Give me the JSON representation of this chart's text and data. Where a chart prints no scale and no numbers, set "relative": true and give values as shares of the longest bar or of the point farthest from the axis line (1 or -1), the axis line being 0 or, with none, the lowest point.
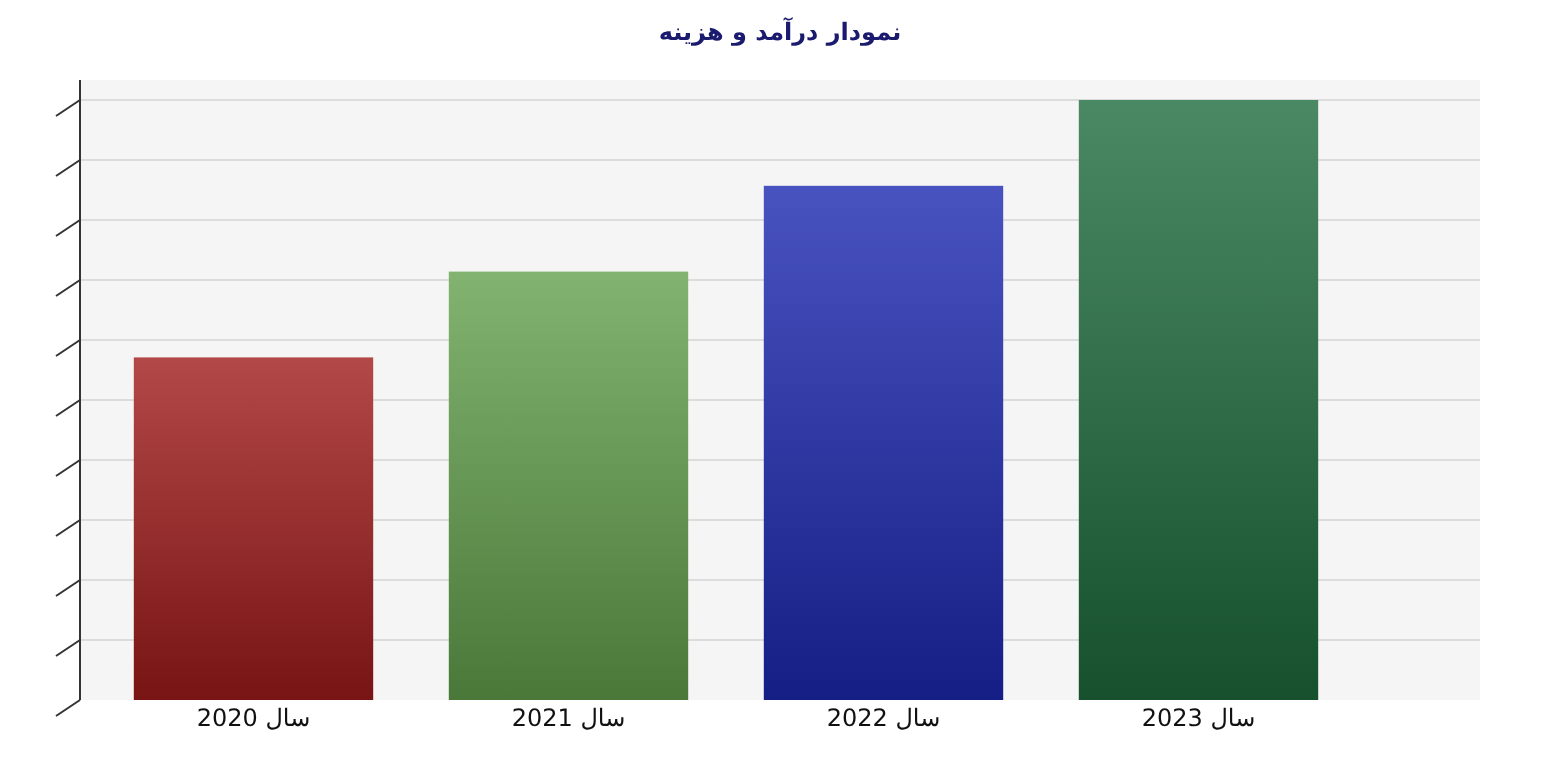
{
  "chart_data": {
    "type": "bar",
    "title": "نمودار درآمد و هزینه",
    "categories": [
      "سال 2020",
      "سال 2021",
      "سال 2022",
      "سال 2023"
    ],
    "values": [
      0.571,
      0.714,
      0.857,
      1
    ],
    "colors": [
      "#a01a1a",
      "#63a04c",
      "#1c28b0",
      "#1d6b3c"
    ],
    "relative": true,
    "grid": "y"
  }
}
